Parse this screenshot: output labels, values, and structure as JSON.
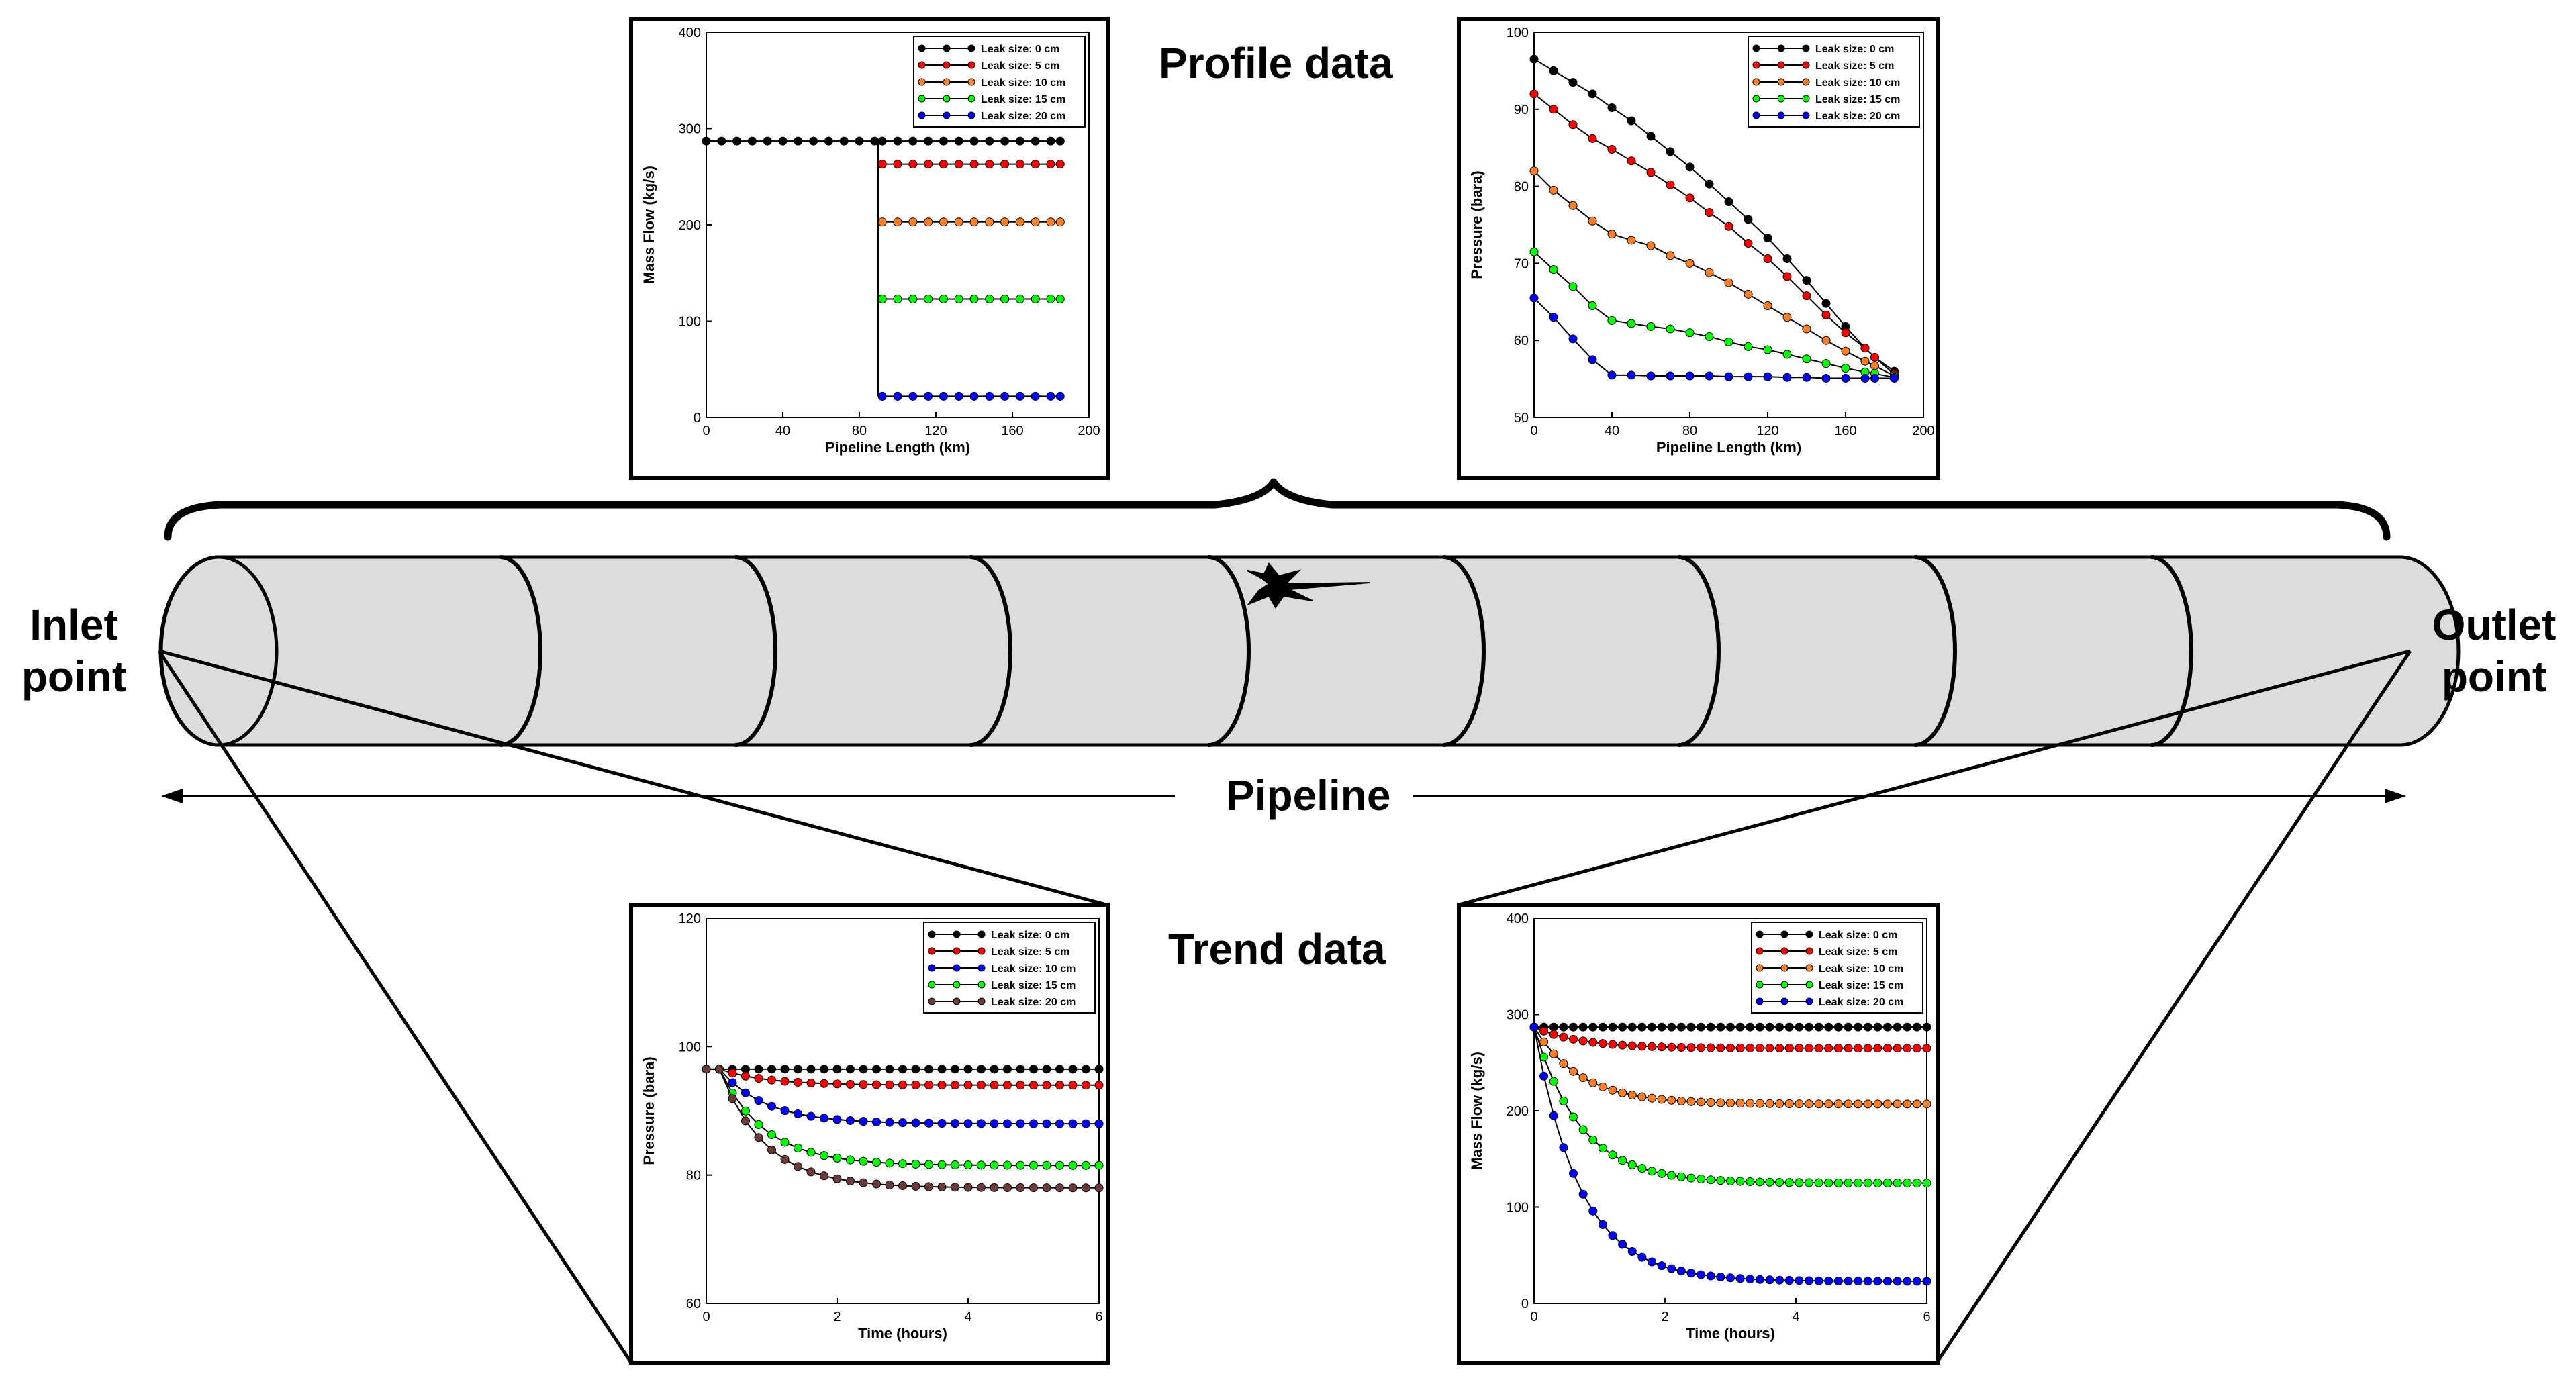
{
  "labels": {
    "profile_title": "Profile data",
    "trend_title": "Trend data",
    "pipeline": "Pipeline",
    "inlet_line1": "Inlet",
    "inlet_line2": "point",
    "outlet_line1": "Outlet",
    "outlet_line2": "point"
  },
  "icons": {
    "leak": "leak-burst-icon"
  },
  "colors": {
    "pipe_fill": "#dcdcdc",
    "black": "#000000",
    "red": "#ff0000",
    "orange": "#ff7f27",
    "green": "#00ff00",
    "blue": "#0000ff",
    "brown": "#6b3a3a"
  },
  "chart_data": [
    {
      "id": "profile-mass",
      "type": "line",
      "xlabel": "Pipeline Length (km)",
      "ylabel": "Mass Flow (kg/s)",
      "xlim": [
        0,
        200
      ],
      "ylim": [
        0,
        400
      ],
      "xticks": [
        0,
        40,
        80,
        120,
        160,
        200
      ],
      "yticks": [
        0,
        100,
        200,
        300,
        400
      ],
      "legend_position": "top-right",
      "series": [
        {
          "name": "Leak size: 0 cm",
          "color": "#000000",
          "x": [
            0,
            8,
            16,
            24,
            32,
            40,
            48,
            56,
            64,
            72,
            80,
            88,
            92,
            100,
            108,
            116,
            124,
            132,
            140,
            148,
            156,
            164,
            172,
            180,
            185
          ],
          "y": [
            287,
            287,
            287,
            287,
            287,
            287,
            287,
            287,
            287,
            287,
            287,
            287,
            287,
            287,
            287,
            287,
            287,
            287,
            287,
            287,
            287,
            287,
            287,
            287,
            287
          ]
        },
        {
          "name": "Leak size: 5 cm",
          "color": "#ff0000",
          "x": [
            92,
            100,
            108,
            116,
            124,
            132,
            140,
            148,
            156,
            164,
            172,
            180,
            185
          ],
          "y": [
            263,
            263,
            263,
            263,
            263,
            263,
            263,
            263,
            263,
            263,
            263,
            263,
            263
          ]
        },
        {
          "name": "Leak size: 10 cm",
          "color": "#ff7f27",
          "x": [
            92,
            100,
            108,
            116,
            124,
            132,
            140,
            148,
            156,
            164,
            172,
            180,
            185
          ],
          "y": [
            203,
            203,
            203,
            203,
            203,
            203,
            203,
            203,
            203,
            203,
            203,
            203,
            203
          ]
        },
        {
          "name": "Leak size: 15 cm",
          "color": "#00ff00",
          "x": [
            92,
            100,
            108,
            116,
            124,
            132,
            140,
            148,
            156,
            164,
            172,
            180,
            185
          ],
          "y": [
            123,
            123,
            123,
            123,
            123,
            123,
            123,
            123,
            123,
            123,
            123,
            123,
            123
          ]
        },
        {
          "name": "Leak size: 20 cm",
          "color": "#0000ff",
          "x": [
            92,
            100,
            108,
            116,
            124,
            132,
            140,
            148,
            156,
            164,
            172,
            180,
            185
          ],
          "y": [
            22,
            22,
            22,
            22,
            22,
            22,
            22,
            22,
            22,
            22,
            22,
            22,
            22
          ]
        }
      ]
    },
    {
      "id": "profile-pressure",
      "type": "line",
      "xlabel": "Pipeline Length (km)",
      "ylabel": "Pressure (bara)",
      "xlim": [
        0,
        200
      ],
      "ylim": [
        50,
        100
      ],
      "xticks": [
        0,
        40,
        80,
        120,
        160,
        200
      ],
      "yticks": [
        50,
        60,
        70,
        80,
        90,
        100
      ],
      "legend_position": "top-right",
      "series": [
        {
          "name": "Leak size: 0 cm",
          "color": "#000000",
          "x": [
            0,
            10,
            20,
            30,
            40,
            50,
            60,
            70,
            80,
            90,
            100,
            110,
            120,
            130,
            140,
            150,
            160,
            170,
            175,
            185
          ],
          "y": [
            96.5,
            95,
            93.5,
            92,
            90.2,
            88.5,
            86.5,
            84.5,
            82.5,
            80.3,
            78,
            75.7,
            73.3,
            70.6,
            67.8,
            64.8,
            61.8,
            59,
            57.8,
            56
          ]
        },
        {
          "name": "Leak size: 5 cm",
          "color": "#ff0000",
          "x": [
            0,
            10,
            20,
            30,
            40,
            50,
            60,
            70,
            80,
            90,
            100,
            110,
            120,
            130,
            140,
            150,
            160,
            170,
            175,
            185
          ],
          "y": [
            92,
            90,
            88,
            86.2,
            84.8,
            83.3,
            81.8,
            80.2,
            78.5,
            76.6,
            74.8,
            72.6,
            70.6,
            68.3,
            65.8,
            63.3,
            61,
            59,
            57.8,
            55.6
          ]
        },
        {
          "name": "Leak size: 10 cm",
          "color": "#ff7f27",
          "x": [
            0,
            10,
            20,
            30,
            40,
            50,
            60,
            70,
            80,
            90,
            100,
            110,
            120,
            130,
            140,
            150,
            160,
            170,
            175,
            185
          ],
          "y": [
            82,
            79.5,
            77.5,
            75.5,
            73.8,
            73,
            72.3,
            71,
            70,
            68.8,
            67.5,
            66,
            64.5,
            63,
            61.5,
            60,
            58.6,
            57.3,
            56.7,
            55.4
          ]
        },
        {
          "name": "Leak size: 15 cm",
          "color": "#00ff00",
          "x": [
            0,
            10,
            20,
            30,
            40,
            50,
            60,
            70,
            80,
            90,
            100,
            110,
            120,
            130,
            140,
            150,
            160,
            170,
            175,
            185
          ],
          "y": [
            71.5,
            69.2,
            67,
            64.5,
            62.6,
            62.2,
            61.8,
            61.5,
            61,
            60.5,
            59.8,
            59.2,
            58.8,
            58.2,
            57.6,
            57,
            56.4,
            55.9,
            55.7,
            55.2
          ]
        },
        {
          "name": "Leak size: 20 cm",
          "color": "#0000ff",
          "x": [
            0,
            10,
            20,
            30,
            40,
            50,
            60,
            70,
            80,
            90,
            100,
            110,
            120,
            130,
            140,
            150,
            160,
            170,
            175,
            185
          ],
          "y": [
            65.5,
            63,
            60.2,
            57.5,
            55.5,
            55.5,
            55.4,
            55.4,
            55.4,
            55.4,
            55.3,
            55.3,
            55.3,
            55.2,
            55.2,
            55.1,
            55.1,
            55.1,
            55.1,
            55.1
          ]
        }
      ]
    },
    {
      "id": "trend-pressure",
      "type": "line",
      "xlabel": "Time (hours)",
      "ylabel": "Pressure (bara)",
      "xlim": [
        0,
        6
      ],
      "ylim": [
        60,
        120
      ],
      "xticks": [
        0,
        2,
        4,
        6
      ],
      "yticks": [
        60,
        80,
        100,
        120
      ],
      "legend_position": "top-right",
      "curve": {
        "y0": 96.5,
        "tau": 0.7,
        "x_start": 0.2,
        "points": 30
      },
      "series": [
        {
          "name": "Leak size: 0 cm",
          "color": "#000000",
          "final": 96.5
        },
        {
          "name": "Leak size: 5 cm",
          "color": "#ff0000",
          "final": 94
        },
        {
          "name": "Leak size: 10 cm",
          "color": "#0000ff",
          "final": 88
        },
        {
          "name": "Leak size: 15 cm",
          "color": "#00ff00",
          "final": 81.5
        },
        {
          "name": "Leak size: 20 cm",
          "color": "#6b3a3a",
          "final": 78
        }
      ]
    },
    {
      "id": "trend-mass",
      "type": "line",
      "xlabel": "Time (hours)",
      "ylabel": "Mass Flow (kg/s)",
      "xlim": [
        0,
        6
      ],
      "ylim": [
        0,
        400
      ],
      "xticks": [
        0,
        2,
        4,
        6
      ],
      "yticks": [
        0,
        100,
        200,
        300,
        400
      ],
      "legend_position": "top-right",
      "curve": {
        "y0": 287,
        "tau": 0.7,
        "x_start": 0.0,
        "points": 40
      },
      "series": [
        {
          "name": "Leak size: 0 cm",
          "color": "#000000",
          "final": 287
        },
        {
          "name": "Leak size: 5 cm",
          "color": "#ff0000",
          "final": 265
        },
        {
          "name": "Leak size: 10 cm",
          "color": "#ff7f27",
          "final": 207
        },
        {
          "name": "Leak size: 15 cm",
          "color": "#00ff00",
          "final": 125
        },
        {
          "name": "Leak size: 20 cm",
          "color": "#0000ff",
          "final": 23
        }
      ]
    }
  ]
}
